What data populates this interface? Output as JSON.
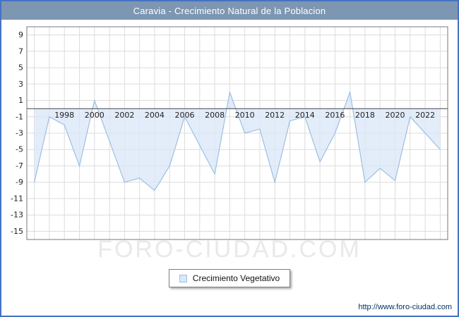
{
  "window": {
    "title": "Caravia - Crecimiento Natural de la Poblacion"
  },
  "chart_data": {
    "type": "area",
    "title": "Caravia - Crecimiento Natural de la Poblacion",
    "x": [
      1996,
      1997,
      1998,
      1999,
      2000,
      2001,
      2002,
      2003,
      2004,
      2005,
      2006,
      2007,
      2008,
      2009,
      2010,
      2011,
      2012,
      2013,
      2014,
      2015,
      2016,
      2017,
      2018,
      2019,
      2020,
      2021,
      2022,
      2023
    ],
    "series": [
      {
        "name": "Crecimiento Vegetativo",
        "values": [
          -9,
          -1,
          -2,
          -7,
          1,
          -4,
          -9,
          -8.5,
          -10,
          -7,
          -1,
          -4.5,
          -8,
          2,
          -3,
          -2.5,
          -9,
          -1.5,
          -1,
          -6.5,
          -3,
          2,
          -9,
          -7.3,
          -8.8,
          -1,
          -3,
          -5
        ]
      }
    ],
    "xlabel": "",
    "ylabel": "",
    "ylim": [
      -16,
      10
    ],
    "yticks": [
      9,
      7,
      5,
      3,
      1,
      -1,
      -3,
      -5,
      -7,
      -9,
      -11,
      -13,
      -15
    ],
    "xtick_labels": [
      "1998",
      "2000",
      "2002",
      "2004",
      "2006",
      "2008",
      "2010",
      "2012",
      "2014",
      "2016",
      "2018",
      "2020",
      "2022"
    ],
    "grid": true,
    "fill_to": 0,
    "legend_position": "bottom",
    "colors": {
      "line": "#9cbfe2",
      "fill": "#dbe8f8",
      "grid": "#dcdcdc",
      "zero_line": "#444444",
      "plot_border": "#777777",
      "tick_text": "#222222"
    }
  },
  "legend": {
    "label": "Crecimiento Vegetativo",
    "swatch_color": "#dbe8f8"
  },
  "watermark": "FORO-CIUDAD.COM",
  "footer": {
    "url": "http://www.foro-ciudad.com"
  }
}
